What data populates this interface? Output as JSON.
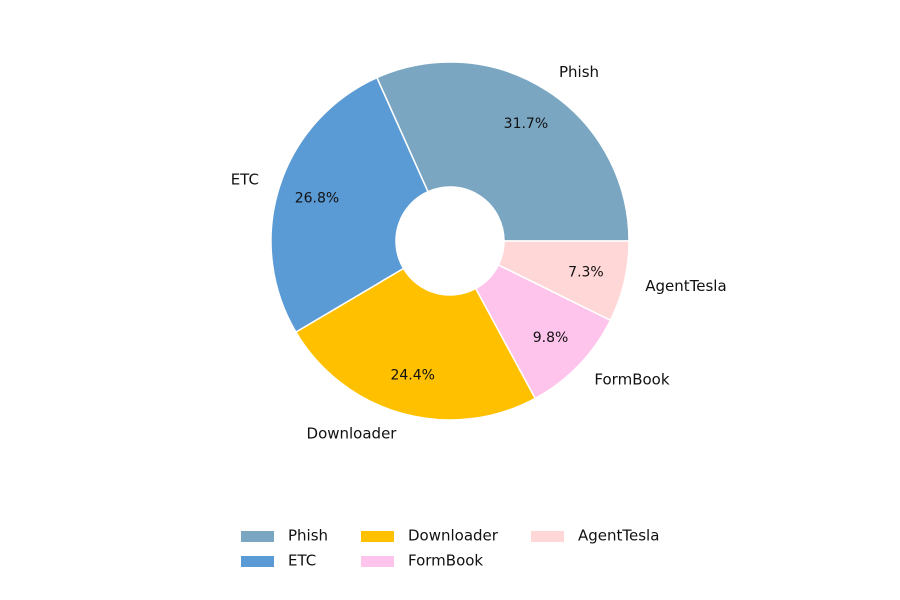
{
  "chart_data": {
    "type": "pie",
    "donut": true,
    "start_angle_deg": 0,
    "direction": "counterclockwise",
    "legend_position": "bottom-center",
    "legend_columns": 3,
    "slices": [
      {
        "label": "Phish",
        "value": 31.7,
        "pct_label": "31.7%",
        "color": "#7aa6c2"
      },
      {
        "label": "ETC",
        "value": 26.8,
        "pct_label": "26.8%",
        "color": "#5b9bd5"
      },
      {
        "label": "Downloader",
        "value": 24.4,
        "pct_label": "24.4%",
        "color": "#ffc000"
      },
      {
        "label": "FormBook",
        "value": 9.8,
        "pct_label": "9.8%",
        "color": "#ffc4ec"
      },
      {
        "label": "AgentTesla",
        "value": 7.3,
        "pct_label": "7.3%",
        "color": "#ffd7d7"
      }
    ]
  }
}
